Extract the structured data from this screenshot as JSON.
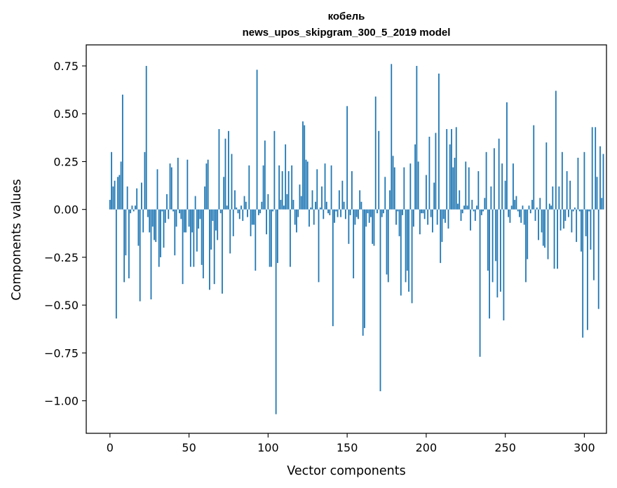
{
  "chart_data": {
    "type": "bar",
    "title": "кобель",
    "subtitle": "news_upos_skipgram_300_5_2019 model",
    "xlabel": "Vector components",
    "ylabel": "Components values",
    "xlim": [
      -15,
      314
    ],
    "ylim": [
      -1.17,
      0.86
    ],
    "xticks": [
      0,
      50,
      100,
      150,
      200,
      250,
      300
    ],
    "xtick_labels": [
      "0",
      "50",
      "100",
      "150",
      "200",
      "250",
      "300"
    ],
    "yticks": [
      -1.0,
      -0.75,
      -0.5,
      -0.25,
      0.0,
      0.25,
      0.5,
      0.75
    ],
    "ytick_labels": [
      "−1.00",
      "−0.75",
      "−0.50",
      "−0.25",
      "0.00",
      "0.25",
      "0.50",
      "0.75"
    ],
    "bar_color": "#1f77b4",
    "grid": false,
    "values": [
      0.05,
      0.3,
      0.12,
      0.15,
      -0.57,
      0.17,
      0.18,
      0.25,
      0.6,
      -0.38,
      -0.24,
      0.12,
      -0.36,
      -0.02,
      0.02,
      -0.01,
      0.02,
      0.11,
      -0.19,
      -0.48,
      0.14,
      -0.12,
      0.3,
      0.75,
      -0.04,
      -0.12,
      -0.47,
      -0.09,
      -0.16,
      -0.17,
      0.21,
      -0.3,
      -0.25,
      -0.01,
      -0.2,
      -0.07,
      0.08,
      -0.05,
      0.24,
      0.22,
      -0.01,
      -0.24,
      -0.09,
      0.27,
      -0.02,
      -0.05,
      -0.39,
      -0.12,
      -0.12,
      0.26,
      -0.09,
      -0.3,
      -0.12,
      -0.3,
      0.07,
      -0.22,
      -0.1,
      -0.05,
      -0.29,
      -0.36,
      0.12,
      0.24,
      0.26,
      -0.42,
      -0.21,
      -0.06,
      -0.39,
      -0.11,
      -0.16,
      0.42,
      -0.02,
      -0.44,
      0.17,
      0.37,
      0.02,
      0.41,
      -0.23,
      0.29,
      -0.14,
      0.1,
      0.01,
      -0.02,
      -0.05,
      0.02,
      -0.06,
      0.07,
      0.04,
      -0.04,
      0.23,
      -0.14,
      -0.08,
      -0.08,
      -0.32,
      0.73,
      -0.03,
      -0.02,
      0.04,
      0.23,
      0.36,
      -0.13,
      0.08,
      -0.3,
      -0.3,
      -0.01,
      0.41,
      -1.07,
      -0.28,
      0.23,
      0.05,
      0.2,
      0.02,
      0.34,
      0.08,
      0.2,
      -0.3,
      0.23,
      0.05,
      -0.08,
      -0.12,
      -0.04,
      0.13,
      0.07,
      0.46,
      0.44,
      0.26,
      0.25,
      -0.09,
      0.01,
      0.1,
      -0.08,
      0.04,
      0.21,
      -0.38,
      0.01,
      0.12,
      -0.05,
      0.24,
      0.04,
      -0.02,
      -0.03,
      0.23,
      -0.61,
      -0.07,
      -0.01,
      -0.04,
      0.1,
      -0.04,
      0.15,
      0.04,
      -0.05,
      0.54,
      -0.18,
      -0.03,
      0.2,
      -0.36,
      -0.08,
      -0.04,
      -0.05,
      0.1,
      0.04,
      -0.66,
      -0.62,
      -0.09,
      -0.02,
      -0.07,
      -0.04,
      -0.18,
      -0.19,
      0.59,
      -0.02,
      0.41,
      -0.95,
      -0.04,
      -0.02,
      0.17,
      -0.34,
      -0.38,
      0.1,
      0.76,
      0.28,
      0.22,
      -0.08,
      -0.01,
      -0.14,
      -0.45,
      -0.03,
      0.22,
      -0.38,
      -0.32,
      -0.43,
      0.24,
      -0.49,
      -0.09,
      0.34,
      0.75,
      0.25,
      -0.13,
      -0.02,
      -0.02,
      -0.05,
      0.18,
      -0.08,
      0.38,
      -0.04,
      -0.12,
      0.14,
      0.4,
      -0.08,
      0.71,
      -0.28,
      -0.17,
      -0.05,
      -0.07,
      0.42,
      -0.1,
      0.34,
      0.42,
      0.22,
      0.27,
      0.43,
      0.03,
      0.1,
      -0.06,
      -0.02,
      0.02,
      0.25,
      0.02,
      0.22,
      -0.11,
      0.05,
      -0.01,
      -0.06,
      0.02,
      0.2,
      -0.77,
      -0.03,
      -0.01,
      0.06,
      0.3,
      -0.32,
      -0.57,
      0.12,
      -0.38,
      0.32,
      -0.27,
      -0.46,
      0.37,
      -0.43,
      0.24,
      -0.58,
      0.15,
      0.56,
      -0.04,
      -0.07,
      0.02,
      0.24,
      0.05,
      0.07,
      -0.01,
      -0.04,
      -0.07,
      0.02,
      -0.08,
      -0.38,
      -0.26,
      0.02,
      -0.02,
      0.05,
      0.44,
      -0.06,
      0.01,
      -0.16,
      0.06,
      -0.12,
      -0.19,
      -0.2,
      0.35,
      -0.26,
      0.03,
      0.02,
      0.12,
      -0.31,
      0.62,
      -0.31,
      0.12,
      -0.11,
      0.3,
      -0.1,
      -0.06,
      0.2,
      -0.04,
      0.15,
      -0.12,
      -0.01,
      0.01,
      -0.17,
      0.27,
      -0.01,
      -0.22,
      -0.67,
      0.3,
      -0.14,
      -0.63,
      -0.01,
      -0.21,
      0.43,
      -0.37,
      0.43,
      0.17,
      -0.52,
      0.33,
      0.06,
      0.29
    ]
  }
}
